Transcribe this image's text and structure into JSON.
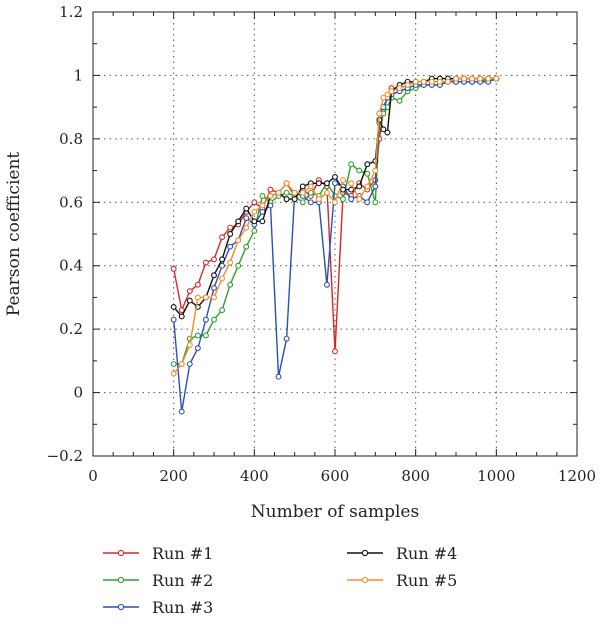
{
  "chart_data": {
    "type": "line",
    "xlabel": "Number of samples",
    "ylabel": "Pearson coefficient",
    "xlim": [
      0,
      1200
    ],
    "ylim": [
      -0.2,
      1.2
    ],
    "xticks": [
      "0",
      "200",
      "400",
      "600",
      "800",
      "1000",
      "1200"
    ],
    "yticks": [
      "−0.2",
      "0",
      "0.2",
      "0.4",
      "0.6",
      "0.8",
      "1",
      "1.2"
    ],
    "grid": "dotted",
    "legend_position": "bottom",
    "series": [
      {
        "name": "Run #1",
        "color": "#d62728",
        "x": [
          200,
          220,
          240,
          260,
          280,
          300,
          320,
          340,
          360,
          380,
          400,
          420,
          440,
          460,
          480,
          500,
          520,
          540,
          560,
          580,
          600,
          620,
          640,
          660,
          680,
          700,
          710,
          720,
          730,
          740,
          760,
          780,
          800,
          820,
          840,
          860,
          880,
          900,
          920,
          940,
          960,
          980,
          1000
        ],
        "y": [
          0.39,
          0.26,
          0.32,
          0.34,
          0.41,
          0.42,
          0.49,
          0.52,
          0.53,
          0.57,
          0.6,
          0.58,
          0.64,
          0.63,
          0.66,
          0.62,
          0.64,
          0.62,
          0.67,
          0.65,
          0.13,
          0.63,
          0.62,
          0.66,
          0.64,
          0.67,
          0.8,
          0.89,
          0.93,
          0.96,
          0.96,
          0.97,
          0.98,
          0.98,
          0.98,
          0.98,
          0.98,
          0.99,
          0.99,
          0.99,
          0.99,
          0.99,
          0.99
        ]
      },
      {
        "name": "Run #2",
        "color": "#2ca02c",
        "x": [
          200,
          220,
          240,
          260,
          280,
          300,
          320,
          340,
          360,
          380,
          400,
          420,
          440,
          460,
          480,
          500,
          520,
          540,
          560,
          580,
          600,
          620,
          640,
          660,
          680,
          700,
          710,
          720,
          730,
          740,
          760,
          780,
          800,
          820,
          840,
          860,
          880,
          900,
          920,
          940,
          960,
          980,
          1000
        ],
        "y": [
          0.09,
          0.09,
          0.17,
          0.18,
          0.18,
          0.23,
          0.26,
          0.34,
          0.4,
          0.46,
          0.51,
          0.62,
          0.6,
          0.62,
          0.63,
          0.62,
          0.6,
          0.63,
          0.62,
          0.66,
          0.62,
          0.61,
          0.72,
          0.7,
          0.69,
          0.6,
          0.85,
          0.88,
          0.9,
          0.93,
          0.92,
          0.95,
          0.96,
          0.97,
          0.97,
          0.97,
          0.98,
          0.98,
          0.98,
          0.98,
          0.98,
          0.99,
          0.99
        ]
      },
      {
        "name": "Run #3",
        "color": "#2c4fb3",
        "x": [
          200,
          220,
          240,
          260,
          280,
          300,
          320,
          340,
          360,
          380,
          400,
          420,
          440,
          460,
          480,
          500,
          520,
          540,
          560,
          580,
          600,
          620,
          640,
          660,
          680,
          700,
          710,
          720,
          730,
          740,
          760,
          780,
          800,
          820,
          840,
          860,
          880,
          900,
          920,
          940,
          960,
          980,
          1000
        ],
        "y": [
          0.23,
          -0.06,
          0.09,
          0.14,
          0.23,
          0.33,
          0.4,
          0.46,
          0.48,
          0.55,
          0.53,
          0.57,
          0.59,
          0.05,
          0.17,
          0.63,
          0.62,
          0.6,
          0.6,
          0.34,
          0.66,
          0.65,
          0.61,
          0.62,
          0.6,
          0.65,
          0.88,
          0.9,
          0.93,
          0.94,
          0.95,
          0.96,
          0.97,
          0.97,
          0.97,
          0.97,
          0.98,
          0.98,
          0.98,
          0.98,
          0.98,
          0.98,
          0.99
        ]
      },
      {
        "name": "Run #4",
        "color": "#111111",
        "x": [
          200,
          220,
          240,
          260,
          280,
          300,
          320,
          340,
          360,
          380,
          400,
          420,
          440,
          460,
          480,
          500,
          520,
          540,
          560,
          580,
          600,
          620,
          640,
          660,
          680,
          700,
          710,
          720,
          730,
          740,
          760,
          780,
          800,
          820,
          840,
          860,
          880,
          900,
          920,
          940,
          960,
          980,
          1000
        ],
        "y": [
          0.27,
          0.24,
          0.29,
          0.27,
          0.3,
          0.37,
          0.42,
          0.5,
          0.54,
          0.58,
          0.54,
          0.54,
          0.62,
          0.63,
          0.61,
          0.61,
          0.65,
          0.66,
          0.66,
          0.66,
          0.68,
          0.64,
          0.64,
          0.65,
          0.72,
          0.73,
          0.86,
          0.83,
          0.82,
          0.95,
          0.97,
          0.98,
          0.98,
          0.98,
          0.99,
          0.99,
          0.99,
          0.99,
          0.99,
          0.99,
          0.99,
          0.99,
          0.99
        ]
      },
      {
        "name": "Run #5",
        "color": "#f28e2b",
        "x": [
          200,
          220,
          240,
          260,
          280,
          300,
          320,
          340,
          360,
          380,
          400,
          420,
          440,
          460,
          480,
          500,
          520,
          540,
          560,
          580,
          600,
          620,
          640,
          660,
          680,
          700,
          710,
          720,
          730,
          740,
          760,
          780,
          800,
          820,
          840,
          860,
          880,
          900,
          920,
          940,
          960,
          980,
          1000
        ],
        "y": [
          0.06,
          0.09,
          0.15,
          0.3,
          0.3,
          0.3,
          0.36,
          0.41,
          0.48,
          0.52,
          0.57,
          0.59,
          0.62,
          0.63,
          0.66,
          0.63,
          0.63,
          0.65,
          0.61,
          0.63,
          0.6,
          0.67,
          0.66,
          0.61,
          0.65,
          0.7,
          0.88,
          0.93,
          0.94,
          0.95,
          0.96,
          0.97,
          0.98,
          0.98,
          0.98,
          0.98,
          0.98,
          0.99,
          0.99,
          0.99,
          0.99,
          0.99,
          0.99
        ]
      }
    ]
  }
}
